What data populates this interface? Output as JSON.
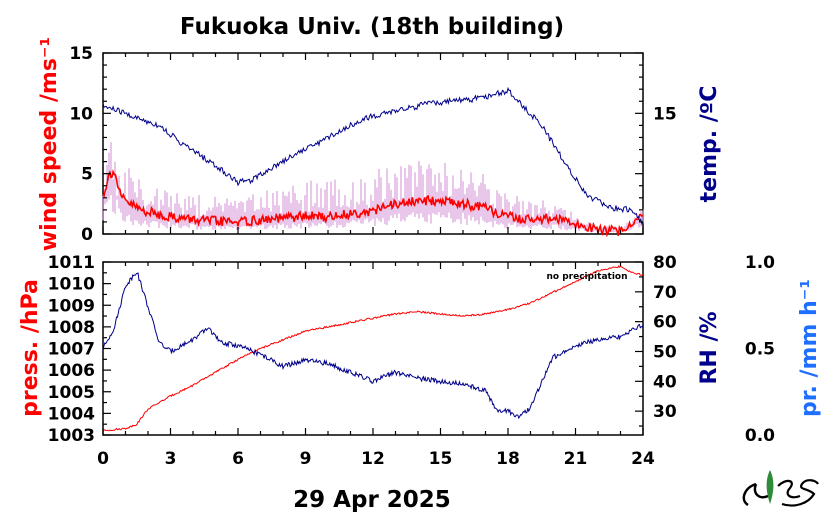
{
  "title": "Fukuoka Univ. (18th building)",
  "date_label": "29 Apr 2025",
  "note": "no precipitation",
  "colors": {
    "red": "#ff0000",
    "navy": "#00008b",
    "blue": "#1e6fff",
    "gust": "#d28fd6",
    "black": "#000000"
  },
  "chart_data": [
    {
      "type": "line",
      "panel": "top",
      "left_axis": {
        "label": "wind speed /ms⁻¹",
        "ticks": [
          "0",
          "5",
          "10",
          "15"
        ],
        "ylim": [
          0,
          15
        ]
      },
      "right_axis": {
        "label": "temp. /ºC",
        "ticks": [
          "15"
        ]
      },
      "x": {
        "ticks": [
          "0",
          "3",
          "6",
          "9",
          "12",
          "15",
          "18",
          "21",
          "24"
        ],
        "xlim": [
          0,
          24
        ]
      },
      "series": [
        {
          "key": "wind_mean",
          "axis": "left",
          "x": [
            0,
            0.3,
            0.5,
            0.8,
            1.2,
            1.7,
            2.5,
            3.5,
            4.5,
            6,
            7.5,
            9,
            10,
            11,
            12,
            13,
            14,
            15,
            16,
            17,
            18,
            19,
            20,
            21,
            22,
            23,
            24
          ],
          "y": [
            3.2,
            5.0,
            5.2,
            3.0,
            2.5,
            2.0,
            1.6,
            1.3,
            1.1,
            1.0,
            1.2,
            1.5,
            1.4,
            1.7,
            1.9,
            2.5,
            2.7,
            2.8,
            2.5,
            2.1,
            1.4,
            1.2,
            1.3,
            0.8,
            0.4,
            0.2,
            1.6
          ]
        },
        {
          "key": "wind_gust",
          "axis": "left",
          "x": [
            0,
            0.3,
            0.6,
            1,
            1.5,
            2,
            3,
            4,
            5,
            6,
            7,
            8,
            9,
            10,
            11,
            12,
            13,
            14,
            15,
            16,
            17,
            18,
            19,
            20,
            21,
            22,
            23,
            24
          ],
          "y": [
            5,
            7.5,
            6.5,
            5,
            4.2,
            3.8,
            3.2,
            2.8,
            2.8,
            2.6,
            3,
            3.5,
            4,
            4,
            4.3,
            4.6,
            5,
            5.3,
            5.5,
            5,
            4.5,
            3,
            2.5,
            2.4,
            1.5,
            0.8,
            0.5,
            2
          ]
        },
        {
          "key": "temperature",
          "axis": "right",
          "x": [
            0,
            0.7,
            1.5,
            2.5,
            3.5,
            4.5,
            5.5,
            6,
            6.5,
            7.5,
            8.5,
            9.5,
            10.5,
            11.5,
            12.5,
            13.5,
            14.5,
            15.5,
            16.5,
            17.5,
            18,
            18.5,
            19.5,
            20.5,
            21.5,
            22.5,
            23.5,
            24
          ],
          "y": [
            10.6,
            10.2,
            9.6,
            9.0,
            7.5,
            6.3,
            5.0,
            4.3,
            4.4,
            5.5,
            6.6,
            7.5,
            8.5,
            9.5,
            10.0,
            10.4,
            10.8,
            11.0,
            11.2,
            11.6,
            11.9,
            10.9,
            9.0,
            6.0,
            3.2,
            2.2,
            2.0,
            0.9
          ]
        }
      ]
    },
    {
      "type": "line",
      "panel": "bottom",
      "left_axis": {
        "label": "press. /hPa",
        "ticks": [
          "1003",
          "1004",
          "1005",
          "1006",
          "1007",
          "1008",
          "1009",
          "1010",
          "1011"
        ],
        "ylim": [
          1003,
          1011
        ]
      },
      "right_axis": {
        "label": "RH /%",
        "ticks": [
          "30",
          "40",
          "50",
          "60",
          "70",
          "80"
        ],
        "ylim": [
          22,
          80
        ]
      },
      "precip_axis": {
        "label": "pr. /mm h⁻¹",
        "ticks": [
          "0.0",
          "0.5",
          "1.0"
        ],
        "ylim": [
          0,
          1
        ]
      },
      "x": {
        "ticks": [
          "0",
          "3",
          "6",
          "9",
          "12",
          "15",
          "18",
          "21",
          "24"
        ],
        "xlim": [
          0,
          24
        ]
      },
      "series": [
        {
          "key": "pressure",
          "axis": "left",
          "x": [
            0,
            1,
            1.5,
            2,
            3,
            4,
            5,
            6,
            7,
            8,
            9,
            10,
            11,
            12,
            13,
            14,
            15,
            16,
            17,
            18,
            19,
            20,
            21,
            22,
            23,
            23.5,
            24
          ],
          "y": [
            1003.2,
            1003.3,
            1003.5,
            1004.2,
            1004.8,
            1005.3,
            1005.9,
            1006.5,
            1007.0,
            1007.4,
            1007.8,
            1008.0,
            1008.2,
            1008.4,
            1008.6,
            1008.7,
            1008.6,
            1008.5,
            1008.6,
            1008.8,
            1009.1,
            1009.6,
            1010.1,
            1010.6,
            1010.8,
            1010.5,
            1010.4
          ]
        },
        {
          "key": "humidity",
          "axis": "right",
          "x": [
            0,
            0.5,
            1,
            1.5,
            2,
            2.5,
            3,
            4,
            4.7,
            5.2,
            6,
            7,
            8,
            9,
            10,
            11,
            12,
            13,
            14,
            15,
            16,
            17,
            17.5,
            18,
            18.5,
            19,
            19.5,
            20,
            21,
            22,
            23,
            24
          ],
          "y": [
            51,
            58,
            72,
            77,
            65,
            53,
            50,
            54,
            58,
            53,
            52,
            49,
            45,
            47,
            46,
            43,
            40,
            43,
            41,
            40,
            39,
            37,
            30,
            30,
            28,
            31,
            40,
            48,
            52,
            54,
            55,
            59
          ]
        }
      ]
    }
  ]
}
